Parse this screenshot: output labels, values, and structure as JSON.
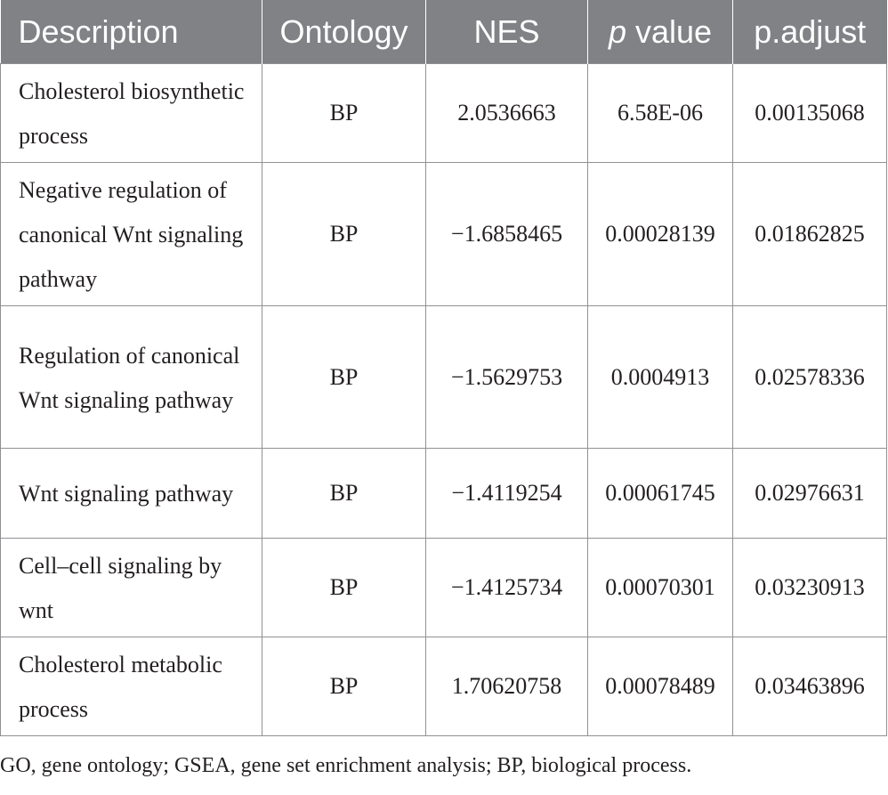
{
  "table": {
    "headers": {
      "description": "Description",
      "ontology": "Ontology",
      "nes": "NES",
      "p_value_italic": "p",
      "p_value_rest": " value",
      "p_adjust": "p.adjust"
    },
    "rows": [
      {
        "description": "Cholesterol biosynthetic process",
        "ontology": "BP",
        "nes": "2.0536663",
        "p_value": "6.58E-06",
        "p_adjust": "0.00135068"
      },
      {
        "description": "Negative regulation of canonical Wnt signaling pathway",
        "ontology": "BP",
        "nes": "−1.6858465",
        "p_value": "0.00028139",
        "p_adjust": "0.01862825"
      },
      {
        "description": "Regulation of canonical Wnt signaling pathway",
        "ontology": "BP",
        "nes": "−1.5629753",
        "p_value": "0.0004913",
        "p_adjust": "0.02578336"
      },
      {
        "description": "Wnt signaling pathway",
        "ontology": "BP",
        "nes": "−1.4119254",
        "p_value": "0.00061745",
        "p_adjust": "0.02976631"
      },
      {
        "description": "Cell–cell signaling by wnt",
        "ontology": "BP",
        "nes": "−1.4125734",
        "p_value": "0.00070301",
        "p_adjust": "0.03230913"
      },
      {
        "description": "Cholesterol metabolic process",
        "ontology": "BP",
        "nes": "1.70620758",
        "p_value": "0.00078489",
        "p_adjust": "0.03463896"
      }
    ]
  },
  "footnote": "GO, gene ontology; GSEA, gene set enrichment analysis; BP, biological process.",
  "colors": {
    "header_bg": "#808285",
    "header_text": "#ffffff",
    "border": "#8f9194",
    "text": "#231f20"
  }
}
